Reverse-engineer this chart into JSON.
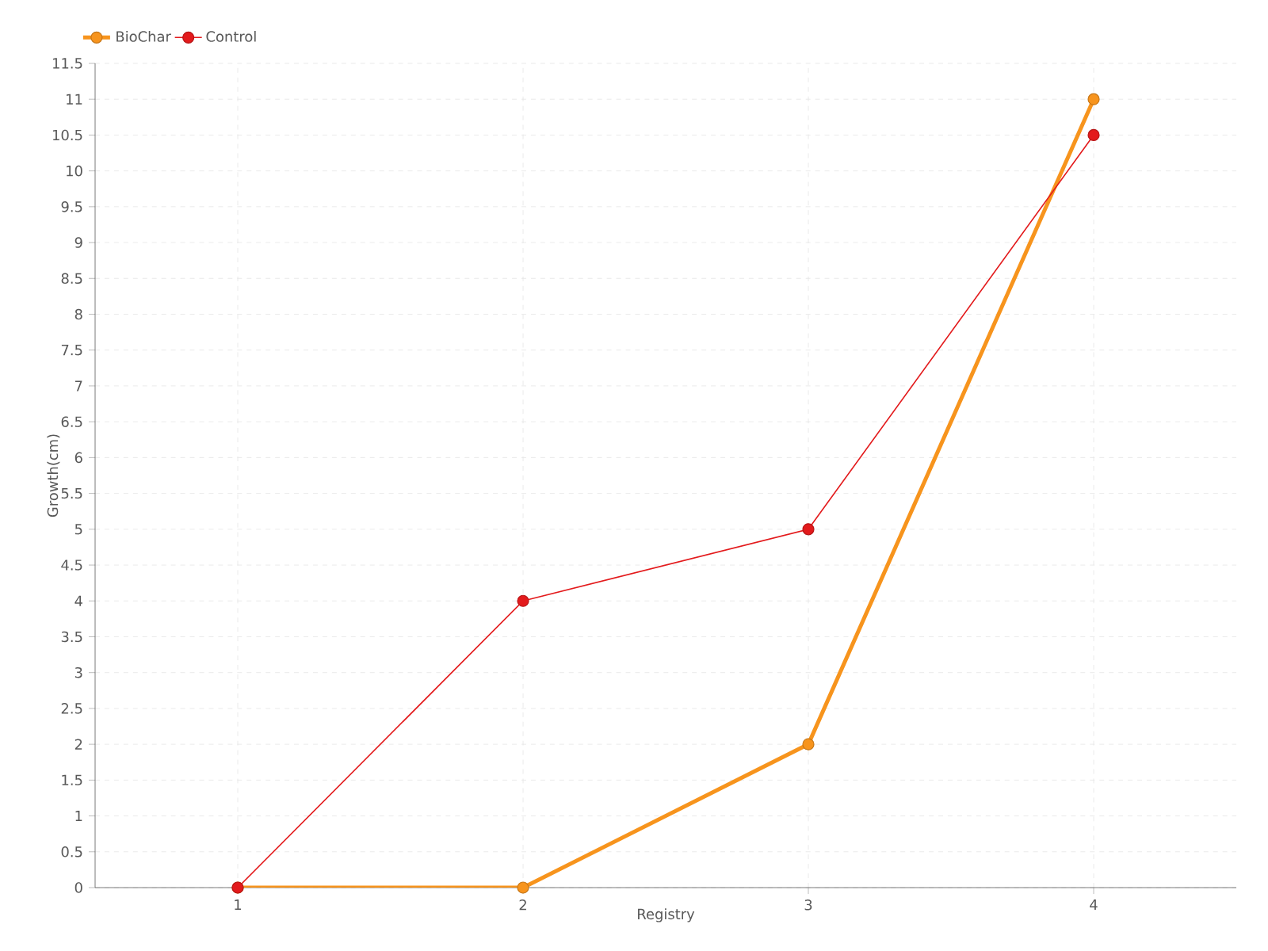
{
  "chart_data": {
    "type": "line",
    "xlabel": "Registry",
    "ylabel": "Growth(cm)",
    "x": [
      1,
      2,
      3,
      4
    ],
    "series": [
      {
        "name": "BioChar",
        "color": "#f7941d",
        "values": [
          0,
          0,
          2,
          11
        ]
      },
      {
        "name": "Control",
        "color": "#e31a1c",
        "values": [
          0,
          4,
          5,
          10.5
        ]
      }
    ],
    "xlim": [
      0.5,
      4.5
    ],
    "xticks": [
      1,
      2,
      3,
      4
    ],
    "ylim": [
      0,
      11.5
    ],
    "yticks": [
      0,
      0.5,
      1,
      1.5,
      2,
      2.5,
      3,
      3.5,
      4,
      4.5,
      5,
      5.5,
      6,
      6.5,
      7,
      7.5,
      8,
      8.5,
      9,
      9.5,
      10,
      10.5,
      11,
      11.5
    ],
    "grid": true,
    "legend": "top left",
    "marker": "circle",
    "line_style": "solid"
  }
}
